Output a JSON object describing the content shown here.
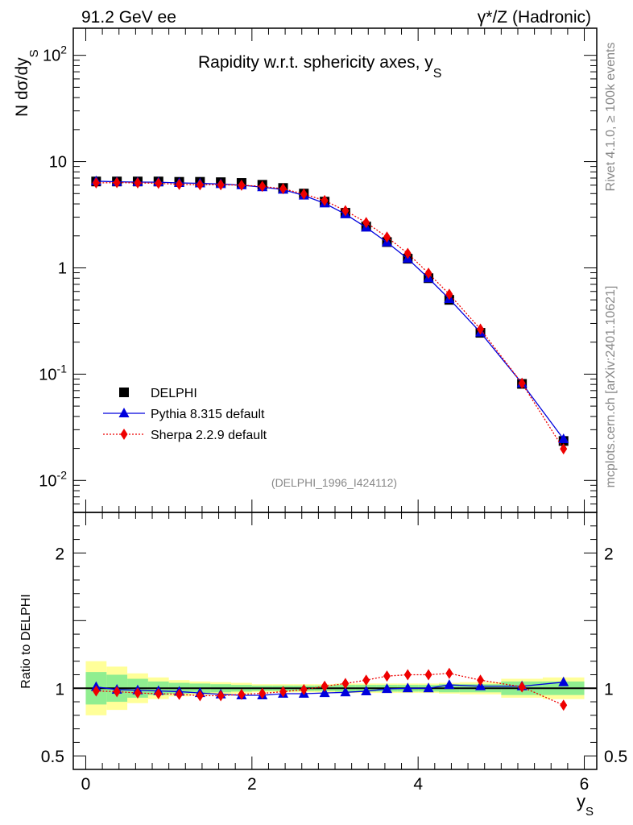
{
  "header": {
    "left": "91.2 GeV ee",
    "right": "γ*/Z (Hadronic)"
  },
  "side_labels": {
    "rivet": "Rivet 4.1.0, ≥ 100k events",
    "mcplots": "mcplots.cern.ch [arXiv:2401.10621]"
  },
  "chart_data": {
    "type": "scatter",
    "title": "Rapidity w.r.t. sphericity axes, y",
    "title_sub": "S",
    "analysis_tag": "(DELPHI_1996_I424112)",
    "xlabel": "y",
    "xlabel_sub": "S",
    "ylabel": "N  dσ/dy",
    "ylabel_sub": "S",
    "ratio_ylabel": "Ratio to DELPHI",
    "xlim": [
      -0.15,
      6.15
    ],
    "ylim_log": [
      0.005,
      180
    ],
    "ratio_ylim": [
      0.4,
      2.3
    ],
    "x_ticks": [
      "0",
      "2",
      "4",
      "6"
    ],
    "y_tick_labels": [
      {
        "base": "10",
        "exp": "-2",
        "value": 0.01
      },
      {
        "base": "10",
        "exp": "-1",
        "value": 0.1
      },
      {
        "base": "1",
        "exp": "",
        "value": 1
      },
      {
        "base": "10",
        "exp": "",
        "value": 10
      },
      {
        "base": "10",
        "exp": "2",
        "value": 100
      }
    ],
    "ratio_ticks": [
      "0.5",
      "1",
      "2"
    ],
    "legend": [
      "DELPHI",
      "Pythia 8.315 default",
      "Sherpa 2.2.9 default"
    ],
    "x": [
      0.125,
      0.375,
      0.625,
      0.875,
      1.125,
      1.375,
      1.625,
      1.875,
      2.125,
      2.375,
      2.625,
      2.875,
      3.125,
      3.375,
      3.625,
      3.875,
      4.125,
      4.375,
      4.75,
      5.25,
      5.75
    ],
    "bin_edges": [
      0,
      0.25,
      0.5,
      0.75,
      1.0,
      1.25,
      1.5,
      1.75,
      2.0,
      2.25,
      2.5,
      2.75,
      3.0,
      3.25,
      3.5,
      3.75,
      4.0,
      4.25,
      4.5,
      5.0,
      5.5,
      6.0
    ],
    "series": [
      {
        "name": "DELPHI",
        "values": [
          6.5,
          6.5,
          6.5,
          6.5,
          6.45,
          6.45,
          6.4,
          6.3,
          6.05,
          5.65,
          5.0,
          4.2,
          3.3,
          2.45,
          1.75,
          1.22,
          0.8,
          0.5,
          0.245,
          0.081,
          0.0235
        ]
      },
      {
        "name": "Pythia 8.315 default",
        "values": [
          6.55,
          6.45,
          6.42,
          6.4,
          6.3,
          6.25,
          6.15,
          6.0,
          5.75,
          5.45,
          4.8,
          4.05,
          3.2,
          2.4,
          1.74,
          1.22,
          0.8,
          0.51,
          0.247,
          0.082,
          0.0245
        ]
      },
      {
        "name": "Sherpa 2.2.9 default",
        "values": [
          6.3,
          6.35,
          6.3,
          6.25,
          6.1,
          6.05,
          6.05,
          6.0,
          5.85,
          5.55,
          4.95,
          4.3,
          3.45,
          2.67,
          1.95,
          1.37,
          0.89,
          0.565,
          0.265,
          0.082,
          0.0198
        ]
      }
    ],
    "ratio_series": [
      {
        "name": "Pythia 8.315 default",
        "values": [
          1.01,
          0.99,
          0.985,
          0.98,
          0.975,
          0.965,
          0.955,
          0.948,
          0.948,
          0.96,
          0.96,
          0.965,
          0.97,
          0.978,
          0.995,
          1.0,
          1.0,
          1.025,
          1.015,
          1.015,
          1.045
        ]
      },
      {
        "name": "Sherpa 2.2.9 default",
        "values": [
          0.98,
          0.975,
          0.965,
          0.96,
          0.955,
          0.945,
          0.945,
          0.955,
          0.962,
          0.975,
          0.99,
          1.015,
          1.035,
          1.06,
          1.09,
          1.1,
          1.1,
          1.11,
          1.06,
          1.01,
          0.875
        ]
      }
    ],
    "uncertainty_bands": {
      "inner": [
        0.12,
        0.1,
        0.07,
        0.05,
        0.04,
        0.035,
        0.03,
        0.025,
        0.02,
        0.02,
        0.02,
        0.02,
        0.025,
        0.025,
        0.025,
        0.025,
        0.025,
        0.03,
        0.03,
        0.05,
        0.05
      ],
      "outer": [
        0.2,
        0.16,
        0.11,
        0.08,
        0.06,
        0.05,
        0.045,
        0.04,
        0.03,
        0.03,
        0.03,
        0.03,
        0.035,
        0.035,
        0.035,
        0.035,
        0.035,
        0.04,
        0.045,
        0.07,
        0.08
      ]
    },
    "colors": {
      "data": "#000000",
      "pythia": "#0000dd",
      "sherpa": "#ee0000",
      "band_inner": "#90ee90",
      "band_outer": "#ffff99"
    }
  }
}
